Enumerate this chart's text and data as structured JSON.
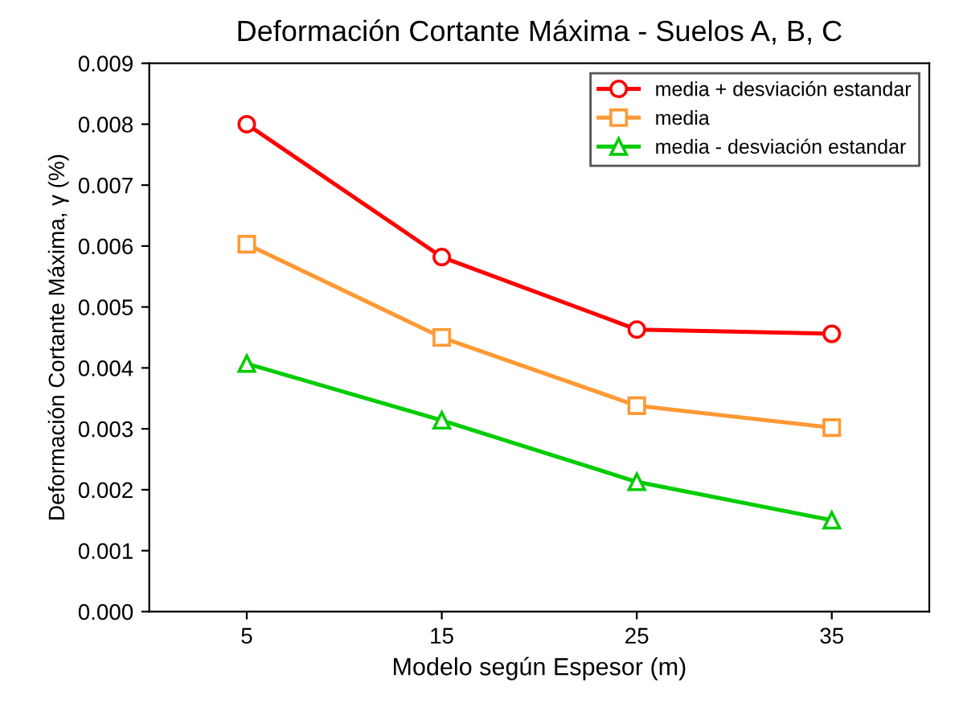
{
  "chart_data": {
    "type": "line",
    "title": "Deformación Cortante Máxima - Suelos A, B, C",
    "xlabel": "Modelo según Espesor (m)",
    "ylabel": "Deformación Cortante Máxima, γ (%)",
    "categories": [
      "5",
      "15",
      "25",
      "35"
    ],
    "series": [
      {
        "name": "media + desviación estandar",
        "color": "#ff0000",
        "marker": "circle",
        "values": [
          0.008,
          0.00582,
          0.00463,
          0.00456
        ]
      },
      {
        "name": "media",
        "color": "#ff9933",
        "marker": "square",
        "values": [
          0.00603,
          0.0045,
          0.00338,
          0.00302
        ]
      },
      {
        "name": "media - desviación estandar",
        "color": "#00cc00",
        "marker": "triangle",
        "values": [
          0.00407,
          0.00314,
          0.00213,
          0.0015
        ]
      }
    ],
    "ylim": [
      0,
      0.009
    ],
    "yticks": [
      {
        "value": 0,
        "label": "0.000"
      },
      {
        "value": 0.001,
        "label": "0.001"
      },
      {
        "value": 0.002,
        "label": "0.002"
      },
      {
        "value": 0.003,
        "label": "0.003"
      },
      {
        "value": 0.004,
        "label": "0.004"
      },
      {
        "value": 0.005,
        "label": "0.005"
      },
      {
        "value": 0.006,
        "label": "0.006"
      },
      {
        "value": 0.007,
        "label": "0.007"
      },
      {
        "value": 0.008,
        "label": "0.008"
      },
      {
        "value": 0.009,
        "label": "0.009"
      }
    ],
    "grid": false,
    "legend": "top right",
    "line_style": "solid"
  }
}
